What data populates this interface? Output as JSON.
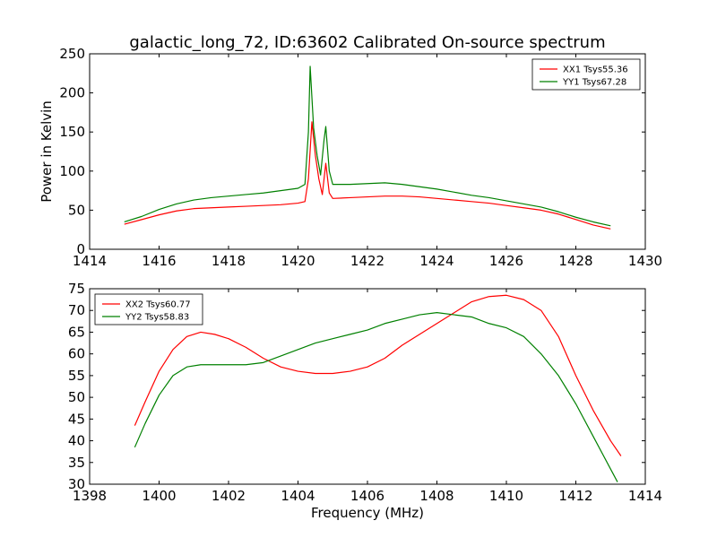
{
  "figure": {
    "title": "galactic_long_72, ID:63602 Calibrated On-source spectrum",
    "ylabel_top": "Power in Kelvin",
    "xlabel_bottom": "Frequency (MHz)"
  },
  "chart_data": [
    {
      "type": "line",
      "title": "galactic_long_72, ID:63602 Calibrated On-source spectrum",
      "xlabel": "",
      "ylabel": "Power in Kelvin",
      "xlim": [
        1414,
        1430
      ],
      "ylim": [
        0,
        250
      ],
      "xticks": [
        1414,
        1416,
        1418,
        1420,
        1422,
        1424,
        1426,
        1428,
        1430
      ],
      "yticks": [
        0,
        50,
        100,
        150,
        200,
        250
      ],
      "grid": false,
      "legend": "top-right",
      "series": [
        {
          "name": "XX1 Tsys55.36",
          "color": "#ff0000",
          "x": [
            1415,
            1415.5,
            1416,
            1416.5,
            1417,
            1417.5,
            1418,
            1418.5,
            1419,
            1419.5,
            1420,
            1420.2,
            1420.3,
            1420.4,
            1420.5,
            1420.6,
            1420.7,
            1420.8,
            1420.9,
            1421,
            1421.5,
            1422,
            1422.5,
            1423,
            1423.5,
            1424,
            1424.5,
            1425,
            1425.5,
            1426,
            1426.5,
            1427,
            1427.5,
            1428,
            1428.5,
            1429
          ],
          "y": [
            32,
            38,
            44,
            49,
            52,
            53,
            54,
            55,
            56,
            57,
            59,
            61,
            90,
            163,
            120,
            90,
            70,
            110,
            72,
            65,
            66,
            67,
            68,
            68,
            67,
            65,
            63,
            61,
            59,
            56,
            53,
            50,
            45,
            38,
            31,
            26
          ]
        },
        {
          "name": "YY1 Tsys67.28",
          "color": "#008000",
          "x": [
            1415,
            1415.5,
            1416,
            1416.5,
            1417,
            1417.5,
            1418,
            1418.5,
            1419,
            1419.5,
            1420,
            1420.2,
            1420.3,
            1420.35,
            1420.45,
            1420.55,
            1420.65,
            1420.75,
            1420.8,
            1420.9,
            1421,
            1421.5,
            1422,
            1422.5,
            1423,
            1423.5,
            1424,
            1424.5,
            1425,
            1425.5,
            1426,
            1426.5,
            1427,
            1427.5,
            1428,
            1428.5,
            1429
          ],
          "y": [
            35,
            42,
            51,
            58,
            63,
            66,
            68,
            70,
            72,
            75,
            78,
            83,
            150,
            234,
            155,
            120,
            95,
            140,
            157,
            100,
            83,
            83,
            84,
            85,
            83,
            80,
            77,
            73,
            69,
            66,
            62,
            58,
            54,
            48,
            41,
            35,
            30
          ]
        }
      ]
    },
    {
      "type": "line",
      "title": "",
      "xlabel": "Frequency (MHz)",
      "ylabel": "",
      "xlim": [
        1398,
        1414
      ],
      "ylim": [
        30,
        75
      ],
      "xticks": [
        1398,
        1400,
        1402,
        1404,
        1406,
        1408,
        1410,
        1412,
        1414
      ],
      "yticks": [
        30,
        35,
        40,
        45,
        50,
        55,
        60,
        65,
        70,
        75
      ],
      "grid": false,
      "legend": "top-left",
      "series": [
        {
          "name": "XX2 Tsys60.77",
          "color": "#ff0000",
          "x": [
            1399.3,
            1399.6,
            1400,
            1400.4,
            1400.8,
            1401.2,
            1401.6,
            1402,
            1402.5,
            1403,
            1403.5,
            1404,
            1404.5,
            1405,
            1405.5,
            1406,
            1406.5,
            1407,
            1407.5,
            1408,
            1408.5,
            1409,
            1409.5,
            1410,
            1410.5,
            1411,
            1411.5,
            1412,
            1412.5,
            1413,
            1413.3
          ],
          "y": [
            43.5,
            49,
            56,
            61,
            64,
            65,
            64.5,
            63.5,
            61.5,
            59,
            57,
            56,
            55.5,
            55.5,
            56,
            57,
            59,
            62,
            64.5,
            67,
            69.5,
            72,
            73.2,
            73.5,
            72.5,
            70,
            64,
            55,
            47,
            40,
            36.5
          ]
        },
        {
          "name": "YY2 Tsys58.83",
          "color": "#008000",
          "x": [
            1399.3,
            1399.6,
            1400,
            1400.4,
            1400.8,
            1401.2,
            1401.6,
            1402,
            1402.5,
            1403,
            1403.5,
            1404,
            1404.5,
            1405,
            1405.5,
            1406,
            1406.5,
            1407,
            1407.5,
            1408,
            1408.5,
            1409,
            1409.5,
            1410,
            1410.5,
            1411,
            1411.5,
            1412,
            1412.5,
            1413,
            1413.2
          ],
          "y": [
            38.5,
            44,
            50.5,
            55,
            57,
            57.5,
            57.5,
            57.5,
            57.5,
            58,
            59.5,
            61,
            62.5,
            63.5,
            64.5,
            65.5,
            67,
            68,
            69,
            69.5,
            69,
            68.5,
            67,
            66,
            64,
            60,
            55,
            48.5,
            41,
            33.5,
            30.5
          ]
        }
      ]
    }
  ]
}
